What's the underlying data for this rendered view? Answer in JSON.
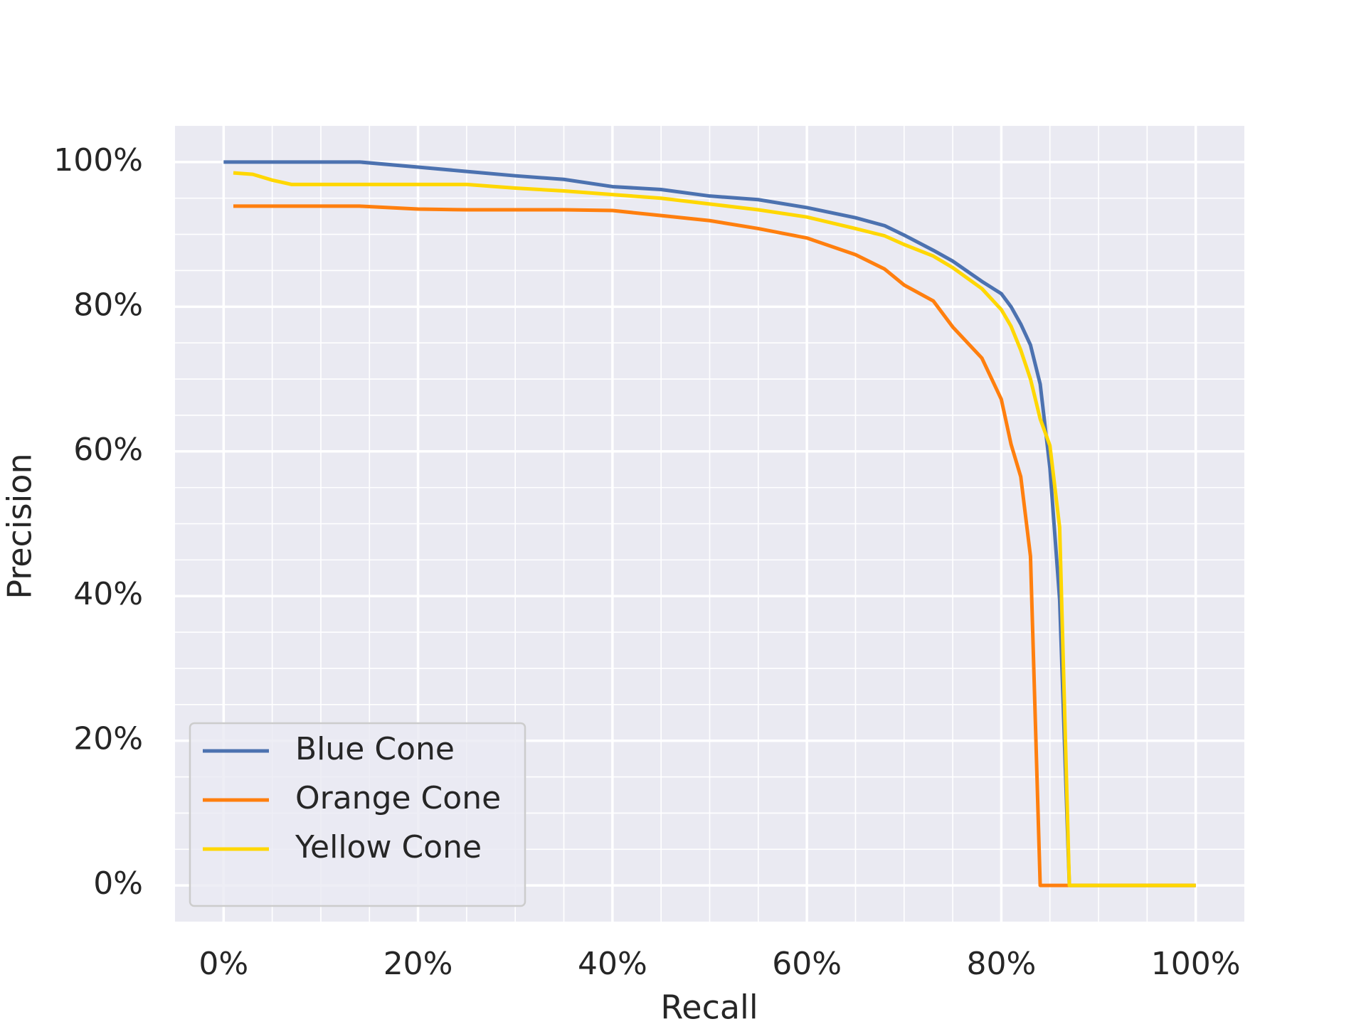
{
  "chart_data": {
    "type": "line",
    "x_label": "Recall",
    "y_label": "Precision",
    "x": [
      0,
      1,
      3,
      5,
      7,
      14,
      20,
      25,
      30,
      35,
      40,
      45,
      50,
      55,
      60,
      65,
      68,
      70,
      73,
      75,
      78,
      80,
      81,
      82,
      83,
      84,
      85,
      86,
      87,
      100
    ],
    "series": [
      {
        "name": "Blue Cone",
        "color": "#4c72b0",
        "values": [
          100,
          100,
          100,
          100,
          100,
          100,
          99.3,
          98.7,
          98.1,
          97.6,
          96.6,
          96.2,
          95.3,
          94.8,
          93.7,
          92.3,
          91.2,
          89.9,
          87.8,
          86.3,
          83.5,
          81.8,
          80,
          77.6,
          74.7,
          69.3,
          57.7,
          39.5,
          0,
          0
        ]
      },
      {
        "name": "Orange Cone",
        "color": "#ff7f0e",
        "values": [
          null,
          93.9,
          93.9,
          93.9,
          93.9,
          93.9,
          93.5,
          93.4,
          93.4,
          93.4,
          93.3,
          92.6,
          91.9,
          90.8,
          89.5,
          87.2,
          85.2,
          83,
          80.8,
          77.2,
          72.9,
          67.2,
          61,
          56.5,
          45.5,
          0,
          0,
          0,
          0,
          0
        ]
      },
      {
        "name": "Yellow Cone",
        "color": "#ffd700",
        "values": [
          null,
          98.5,
          98.3,
          97.5,
          96.9,
          96.9,
          96.9,
          96.9,
          96.4,
          96,
          95.5,
          95,
          94.2,
          93.4,
          92.4,
          90.8,
          89.8,
          88.6,
          87,
          85.4,
          82.5,
          79.6,
          77.3,
          74,
          70,
          64.5,
          60.8,
          49.5,
          0,
          0
        ]
      }
    ],
    "xlim": [
      -5,
      105
    ],
    "ylim": [
      -5,
      105
    ],
    "xticks": [
      {
        "value": 0,
        "label": "0%"
      },
      {
        "value": 20,
        "label": "20%"
      },
      {
        "value": 40,
        "label": "40%"
      },
      {
        "value": 60,
        "label": "60%"
      },
      {
        "value": 80,
        "label": "80%"
      },
      {
        "value": 100,
        "label": "100%"
      }
    ],
    "yticks": [
      {
        "value": 0,
        "label": "0%"
      },
      {
        "value": 20,
        "label": "20%"
      },
      {
        "value": 40,
        "label": "40%"
      },
      {
        "value": 60,
        "label": "60%"
      },
      {
        "value": 80,
        "label": "80%"
      },
      {
        "value": 100,
        "label": "100%"
      }
    ],
    "xminorticks": [
      5,
      10,
      15,
      25,
      30,
      35,
      45,
      50,
      55,
      65,
      70,
      75,
      85,
      90,
      95
    ],
    "yminorticks": [
      5,
      10,
      15,
      25,
      30,
      35,
      45,
      50,
      55,
      65,
      70,
      75,
      85,
      90,
      95
    ],
    "grid": true,
    "legend": "lower left"
  }
}
